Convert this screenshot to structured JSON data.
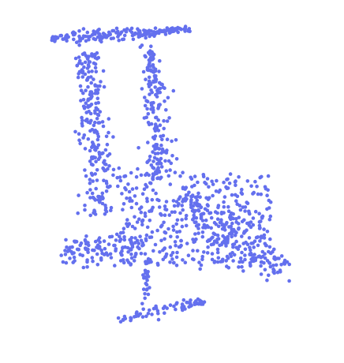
{
  "image": {
    "subject": "3d-point-cloud",
    "background_color": "#ffffff",
    "point_color": "#6470ee",
    "point_count": 1400
  },
  "parts": [
    {
      "name": "top-plate"
    },
    {
      "name": "left-column"
    },
    {
      "name": "right-column"
    },
    {
      "name": "seat-body"
    },
    {
      "name": "left-foot"
    },
    {
      "name": "right-wing"
    },
    {
      "name": "bottom-base"
    },
    {
      "name": "center-stem"
    }
  ]
}
